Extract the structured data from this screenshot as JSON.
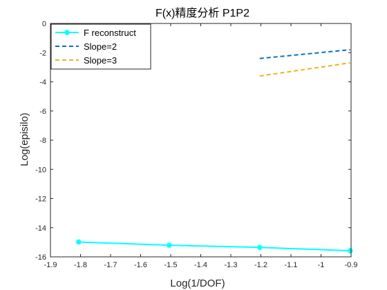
{
  "chart_data": {
    "type": "line",
    "title": "F(x)精度分析 P1P2",
    "xlabel": "Log(1/DOF)",
    "ylabel": "Log(episilo)",
    "xlim": [
      -1.9,
      -0.9
    ],
    "ylim": [
      -16,
      0
    ],
    "xticks": [
      "-1.9",
      "-1.8",
      "-1.7",
      "-1.6",
      "-1.5",
      "-1.4",
      "-1.3",
      "-1.2",
      "-1.1",
      "-1",
      "-0.9"
    ],
    "yticks": [
      "0",
      "-2",
      "-4",
      "-6",
      "-8",
      "-10",
      "-12",
      "-14",
      "-16"
    ],
    "grid": false,
    "legend_position": "top-left",
    "series": [
      {
        "name": "F reconstruct",
        "color": "#00ffff",
        "style": "solid",
        "marker": "star",
        "x": [
          -1.806,
          -1.505,
          -1.204,
          -0.903
        ],
        "y": [
          -14.98,
          -15.2,
          -15.35,
          -15.58
        ]
      },
      {
        "name": "Slope=2",
        "color": "#0072bd",
        "style": "dashed",
        "marker": "none",
        "x": [
          -1.204,
          -0.903
        ],
        "y": [
          -2.4,
          -1.8
        ]
      },
      {
        "name": "Slope=3",
        "color": "#edb120",
        "style": "dashed",
        "marker": "none",
        "x": [
          -1.204,
          -0.903
        ],
        "y": [
          -3.6,
          -2.7
        ]
      }
    ]
  }
}
